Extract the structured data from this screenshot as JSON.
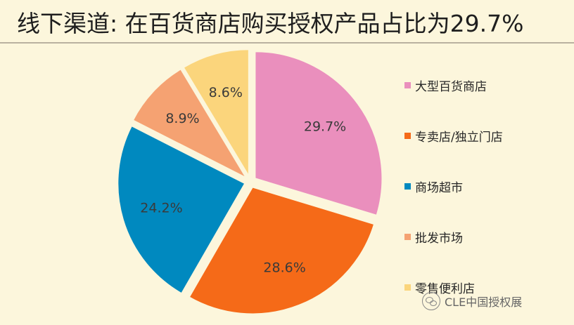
{
  "header": {
    "title": "线下渠道: 在百货商店购买授权产品占比为29.7%"
  },
  "chart_data": {
    "type": "pie",
    "title": "线下渠道: 在百货商店购买授权产品占比为29.7%",
    "slices": [
      {
        "label": "大型百货商店",
        "value": 29.7,
        "value_label": "29.7%",
        "color": "#ea8fbd"
      },
      {
        "label": "专卖店/独立门店",
        "value": 28.6,
        "value_label": "28.6%",
        "color": "#f56a18"
      },
      {
        "label": "商场超市",
        "value": 24.2,
        "value_label": "24.2%",
        "color": "#0089bf"
      },
      {
        "label": "批发市场",
        "value": 8.9,
        "value_label": "8.9%",
        "color": "#f5a272"
      },
      {
        "label": "零售便利店",
        "value": 8.6,
        "value_label": "8.6%",
        "color": "#fbd57c"
      }
    ],
    "start": "12 o'clock",
    "direction": "clockwise",
    "exploded": true,
    "legend_position": "right"
  },
  "watermark": {
    "icon": "wechat-icon",
    "text": "CLE中国授权展"
  }
}
